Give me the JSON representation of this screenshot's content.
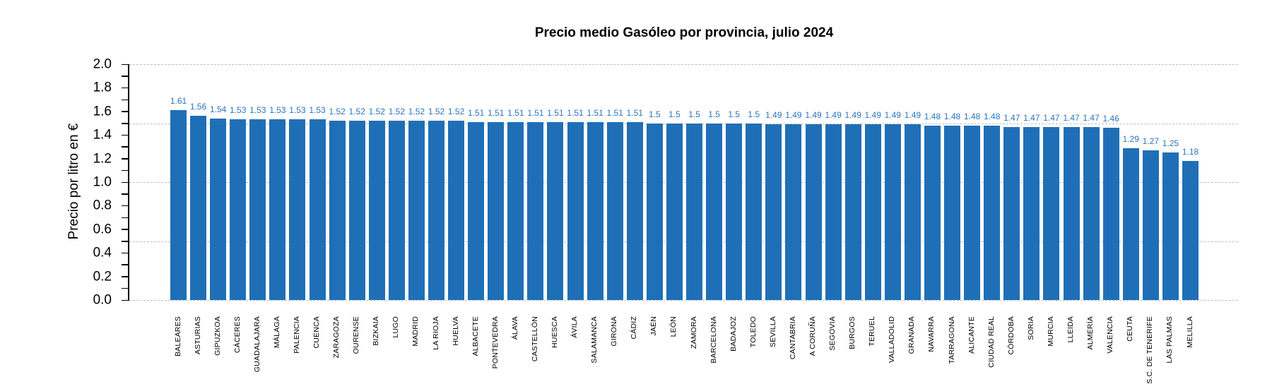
{
  "chart_data": {
    "type": "bar",
    "title": "Precio medio Gasóleo por provincia, julio 2024",
    "xlabel": "",
    "ylabel": "Precio por litro en €",
    "ylim": [
      0,
      2.0
    ],
    "yticks": [
      "0.0",
      "0.2",
      "0.4",
      "0.6",
      "0.8",
      "1.0",
      "1.2",
      "1.4",
      "1.6",
      "1.8",
      "2.0"
    ],
    "minor_tick_step": 0.1,
    "gridlines_y": [
      0.5,
      1.0,
      1.5,
      2.0
    ],
    "grid": "dashed horizontal",
    "bar_color": "#1f6fb7",
    "label_color": "#2b74c0",
    "categories": [
      "BALEARES",
      "ASTURIAS",
      "GIPUZKOA",
      "CÁCERES",
      "GUADALAJARA",
      "MÁLAGA",
      "PALENCIA",
      "CUENCA",
      "ZARAGOZA",
      "OURENSE",
      "BIZKAIA",
      "LUGO",
      "MADRID",
      "LA RIOJA",
      "HUELVA",
      "ALBACETE",
      "PONTEVEDRA",
      "ÁLAVA",
      "CASTELLÓN",
      "HUESCA",
      "ÁVILA",
      "SALAMANCA",
      "GIRONA",
      "CÁDIZ",
      "JAÉN",
      "LEÓN",
      "ZAMORA",
      "BARCELONA",
      "BADAJOZ",
      "TOLEDO",
      "SEVILLA",
      "CANTABRIA",
      "A CORUÑA",
      "SEGOVIA",
      "BURGOS",
      "TERUEL",
      "VALLADOLID",
      "GRANADA",
      "NAVARRA",
      "TARRAGONA",
      "ALICANTE",
      "CIUDAD REAL",
      "CÓRDOBA",
      "SORIA",
      "MURCIA",
      "LLEIDA",
      "ALMERÍA",
      "VALENCIA",
      "CEUTA",
      "S.C. DE TENERIFE",
      "LAS PALMAS",
      "MELILLA"
    ],
    "values": [
      1.61,
      1.56,
      1.54,
      1.53,
      1.53,
      1.53,
      1.53,
      1.53,
      1.52,
      1.52,
      1.52,
      1.52,
      1.52,
      1.52,
      1.52,
      1.51,
      1.51,
      1.51,
      1.51,
      1.51,
      1.51,
      1.51,
      1.51,
      1.51,
      1.5,
      1.5,
      1.5,
      1.5,
      1.5,
      1.5,
      1.49,
      1.49,
      1.49,
      1.49,
      1.49,
      1.49,
      1.49,
      1.49,
      1.48,
      1.48,
      1.48,
      1.48,
      1.47,
      1.47,
      1.47,
      1.47,
      1.47,
      1.46,
      1.29,
      1.27,
      1.25,
      1.18
    ],
    "value_labels": [
      "1.61",
      "1.56",
      "1.54",
      "1.53",
      "1.53",
      "1.53",
      "1.53",
      "1.53",
      "1.52",
      "1.52",
      "1.52",
      "1.52",
      "1.52",
      "1.52",
      "1.52",
      "1.51",
      "1.51",
      "1.51",
      "1.51",
      "1.51",
      "1.51",
      "1.51",
      "1.51",
      "1.51",
      "1.5",
      "1.5",
      "1.5",
      "1.5",
      "1.5",
      "1.5",
      "1.49",
      "1.49",
      "1.49",
      "1.49",
      "1.49",
      "1.49",
      "1.49",
      "1.49",
      "1.48",
      "1.48",
      "1.48",
      "1.48",
      "1.47",
      "1.47",
      "1.47",
      "1.47",
      "1.47",
      "1.46",
      "1.29",
      "1.27",
      "1.25",
      "1.18"
    ],
    "legend": null
  }
}
